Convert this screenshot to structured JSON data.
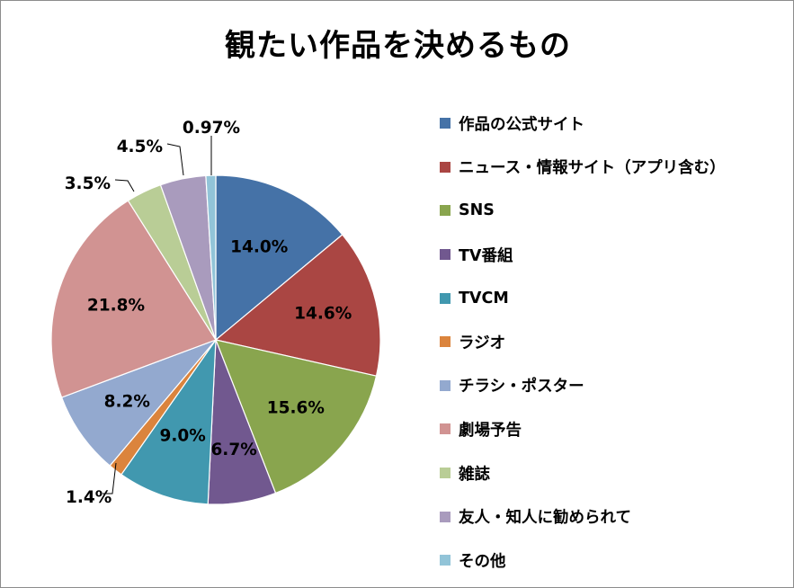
{
  "chart_data": {
    "type": "pie",
    "title": "観たい作品を決めるもの",
    "start_angle": "12 o'clock",
    "direction": "clockwise",
    "legend_placement": "right",
    "slices": [
      {
        "name": "作品の公式サイト",
        "value": 14.0,
        "label": "14.0%",
        "color": "#4572a7"
      },
      {
        "name": "ニュース・情報サイト（アプリ含む）",
        "value": 14.6,
        "label": "14.6%",
        "color": "#aa4643"
      },
      {
        "name": "SNS",
        "value": 15.6,
        "label": "15.6%",
        "color": "#89a54e"
      },
      {
        "name": "TV番組",
        "value": 6.7,
        "label": "6.7%",
        "color": "#71588f"
      },
      {
        "name": "TVCM",
        "value": 9.0,
        "label": "9.0%",
        "color": "#4198af"
      },
      {
        "name": "ラジオ",
        "value": 1.4,
        "label": "1.4%",
        "color": "#db843d"
      },
      {
        "name": "チラシ・ポスター",
        "value": 8.2,
        "label": "8.2%",
        "color": "#93a9cf"
      },
      {
        "name": "劇場予告",
        "value": 21.8,
        "label": "21.8%",
        "color": "#d19392"
      },
      {
        "name": "雑誌",
        "value": 3.5,
        "label": "3.5%",
        "color": "#b9cd96"
      },
      {
        "name": "友人・知人に勧められて",
        "value": 4.5,
        "label": "4.5%",
        "color": "#a99bbd"
      },
      {
        "name": "その他",
        "value": 0.97,
        "label": "0.97%",
        "color": "#92c4d8"
      }
    ]
  }
}
